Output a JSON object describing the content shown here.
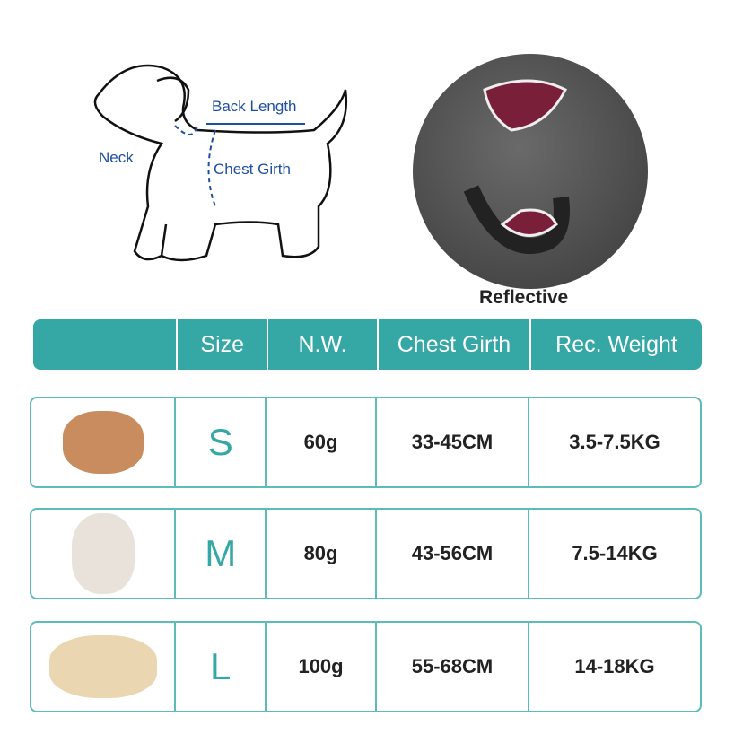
{
  "diagram": {
    "back_length": "Back Length",
    "neck": "Neck",
    "chest_girth": "Chest Girth"
  },
  "product": {
    "caption": "Reflective"
  },
  "table": {
    "headers": [
      "",
      "Size",
      "N.W.",
      "Chest Girth",
      "Rec. Weight"
    ],
    "rows": [
      {
        "image": "poodle",
        "size": "S",
        "nw": "60g",
        "chest": "33-45CM",
        "weight": "3.5-7.5KG"
      },
      {
        "image": "french-bulldog",
        "size": "M",
        "nw": "80g",
        "chest": "43-56CM",
        "weight": "7.5-14KG"
      },
      {
        "image": "labrador",
        "size": "L",
        "nw": "100g",
        "chest": "55-68CM",
        "weight": "14-18KG"
      }
    ]
  },
  "colors": {
    "accent": "#35a8a6",
    "label_blue": "#1f4fa0",
    "harness": "#7a1f3a"
  }
}
